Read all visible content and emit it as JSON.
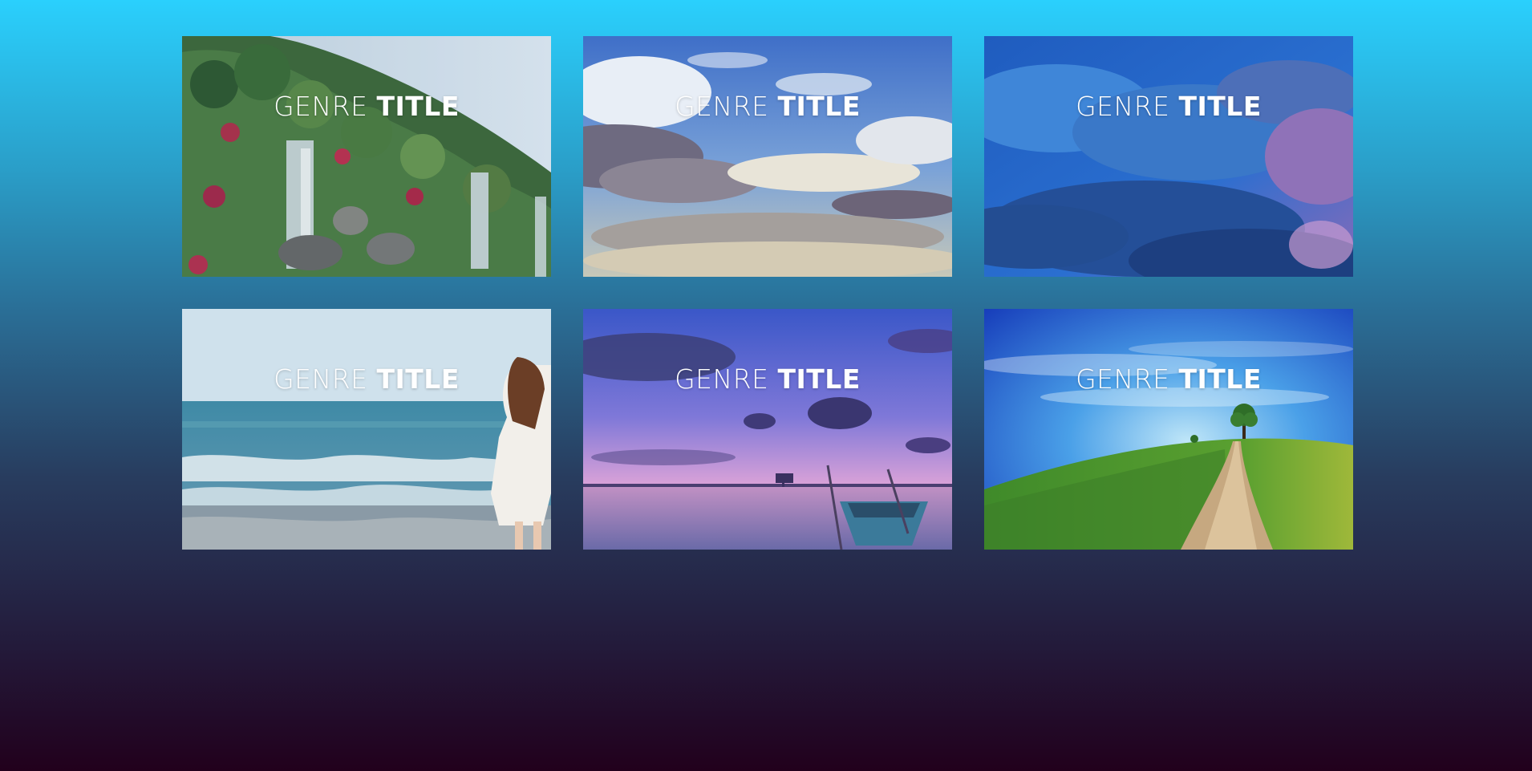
{
  "cards": [
    {
      "genre": "GENRE",
      "title": "TITLE",
      "scene": "waterfall-garden"
    },
    {
      "genre": "GENRE",
      "title": "TITLE",
      "scene": "cloudy-sky"
    },
    {
      "genre": "GENRE",
      "title": "TITLE",
      "scene": "stormy-clouds"
    },
    {
      "genre": "GENRE",
      "title": "TITLE",
      "scene": "beach-woman"
    },
    {
      "genre": "GENRE",
      "title": "TITLE",
      "scene": "sunset-lake-boat"
    },
    {
      "genre": "GENRE",
      "title": "TITLE",
      "scene": "green-hill-path"
    }
  ]
}
